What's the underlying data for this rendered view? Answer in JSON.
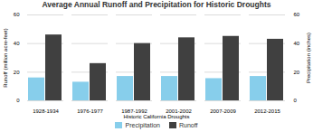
{
  "chart_data": {
    "type": "bar",
    "title": "Average Annual Runoff and Precipitation for Historic Droughts",
    "xlabel": "Historic California Droughts",
    "ylabel": "Runoff (million acre-feet)",
    "y2label": "Precipitation (inches)",
    "categories": [
      "1928-1934",
      "1976-1977",
      "1987-1992",
      "2001-2002",
      "2007-2009",
      "2012-2015"
    ],
    "series": [
      {
        "name": "Precipitation",
        "color": "#87CEEB",
        "values": [
          16,
          13,
          17,
          17,
          15.5,
          17
        ]
      },
      {
        "name": "Runoff",
        "color": "#404040",
        "values": [
          46,
          26,
          40,
          44,
          45,
          43
        ]
      }
    ],
    "ylim": [
      0,
      60
    ],
    "yticks": [
      0,
      20,
      40,
      60
    ],
    "y2lim": [
      0,
      60
    ],
    "y2ticks": [
      0,
      20,
      40,
      60
    ],
    "grid": true,
    "legend": "bottom"
  }
}
